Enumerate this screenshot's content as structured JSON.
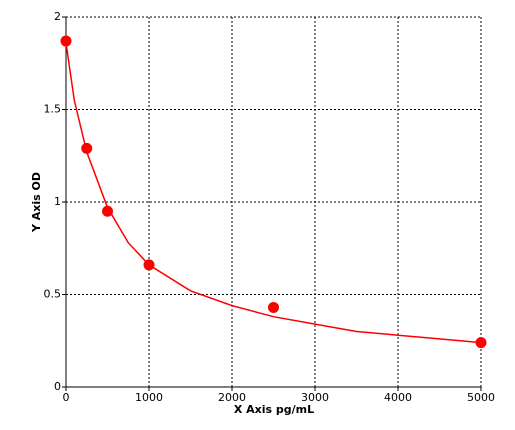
{
  "chart_data": {
    "type": "scatter",
    "xlabel": "X Axis pg/mL",
    "ylabel": "Y Axis OD",
    "xlim": [
      0,
      5000
    ],
    "ylim": [
      0,
      2
    ],
    "xticks": [
      0,
      1000,
      2000,
      3000,
      4000,
      5000
    ],
    "yticks": [
      0,
      0.5,
      1,
      1.5,
      2
    ],
    "grid": true,
    "series": [
      {
        "mode": "markers",
        "color": "#ff0000",
        "x": [
          0,
          250,
          500,
          1000,
          2500,
          5000
        ],
        "values": [
          1.87,
          1.29,
          0.95,
          0.66,
          0.43,
          0.24
        ]
      },
      {
        "mode": "line",
        "color": "#ff0000",
        "x": [
          0,
          100,
          250,
          500,
          750,
          1000,
          1500,
          2000,
          2500,
          3000,
          3500,
          4000,
          4500,
          5000
        ],
        "values": [
          1.86,
          1.55,
          1.27,
          0.97,
          0.78,
          0.66,
          0.52,
          0.44,
          0.38,
          0.34,
          0.3,
          0.28,
          0.26,
          0.24
        ]
      }
    ]
  }
}
